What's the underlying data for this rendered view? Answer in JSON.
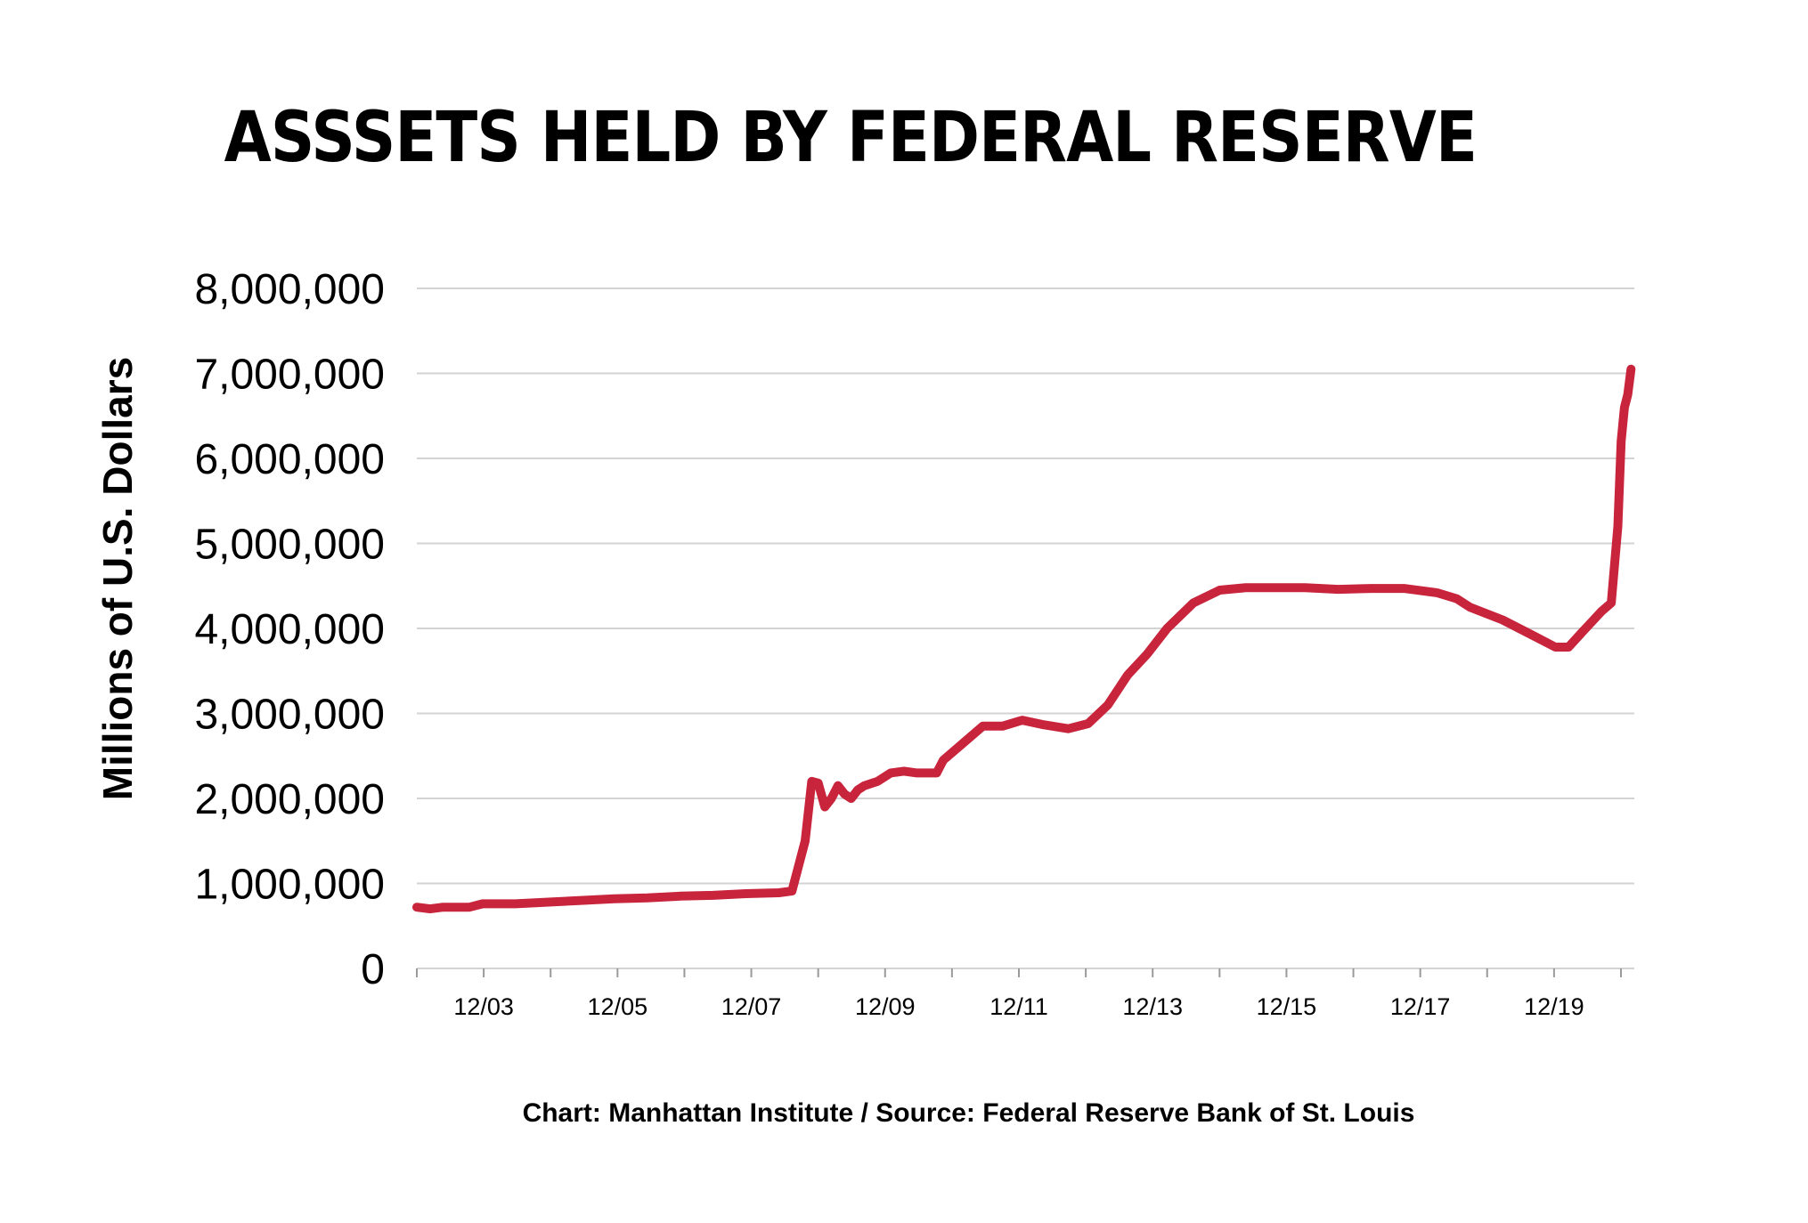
{
  "chart_data": {
    "type": "line",
    "title": "ASSSETS HELD BY FEDERAL RESERVE",
    "ylabel": "Millions of U.S. Dollars",
    "xlabel": "",
    "ylim": [
      0,
      8000000
    ],
    "yticks": [
      0,
      1000000,
      2000000,
      3000000,
      4000000,
      5000000,
      6000000,
      7000000,
      8000000
    ],
    "ytick_labels": [
      "0",
      "1,000,000",
      "2,000,000",
      "3,000,000",
      "4,000,000",
      "5,000,000",
      "6,000,000",
      "7,000,000",
      "8,000,000"
    ],
    "xtick_labels": [
      "12/03",
      "12/05",
      "12/07",
      "12/09",
      "12/11",
      "12/13",
      "12/15",
      "12/17",
      "12/19"
    ],
    "xlim": [
      2002.0,
      2020.5
    ],
    "grid": true,
    "line_color": "#c8243c",
    "grid_color": "#d3d3d3",
    "series": [
      {
        "x": [
          2002.0,
          2002.2,
          2002.4,
          2002.8,
          2003.0,
          2003.5,
          2004.0,
          2004.5,
          2005.0,
          2005.5,
          2006.0,
          2006.5,
          2007.0,
          2007.5,
          2007.7,
          2007.9,
          2008.0,
          2008.1,
          2008.2,
          2008.3,
          2008.4,
          2008.5,
          2008.6,
          2008.7,
          2008.8,
          2009.0,
          2009.2,
          2009.4,
          2009.6,
          2009.9,
          2010.0,
          2010.3,
          2010.6,
          2010.9,
          2011.2,
          2011.5,
          2011.9,
          2012.2,
          2012.5,
          2012.8,
          2013.1,
          2013.4,
          2013.8,
          2014.2,
          2014.6,
          2015.0,
          2015.5,
          2016.0,
          2016.5,
          2017.0,
          2017.5,
          2017.8,
          2018.0,
          2018.5,
          2019.0,
          2019.3,
          2019.5,
          2019.7,
          2020.0,
          2020.15,
          2020.25,
          2020.3,
          2020.35,
          2020.4,
          2020.45
        ],
        "values": [
          720000,
          700000,
          720000,
          720000,
          760000,
          760000,
          780000,
          800000,
          820000,
          830000,
          850000,
          860000,
          880000,
          890000,
          910000,
          1500000,
          2200000,
          2180000,
          1900000,
          2000000,
          2150000,
          2050000,
          2000000,
          2100000,
          2150000,
          2200000,
          2300000,
          2320000,
          2300000,
          2300000,
          2450000,
          2650000,
          2850000,
          2850000,
          2920000,
          2870000,
          2820000,
          2880000,
          3100000,
          3450000,
          3700000,
          4000000,
          4300000,
          4450000,
          4480000,
          4480000,
          4480000,
          4460000,
          4470000,
          4470000,
          4420000,
          4350000,
          4250000,
          4100000,
          3900000,
          3780000,
          3780000,
          3950000,
          4200000,
          4300000,
          5200000,
          6200000,
          6600000,
          6750000,
          7050000
        ]
      }
    ]
  },
  "credit": "Chart: Manhattan Institute  /  Source: Federal Reserve Bank of St. Louis"
}
